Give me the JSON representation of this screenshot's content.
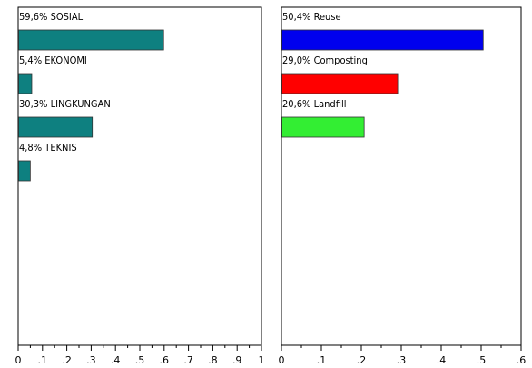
{
  "chart_data": [
    {
      "type": "bar",
      "orientation": "horizontal",
      "categories": [
        "59,6% SOSIAL",
        "5,4% EKONOMI",
        "30,3% LINGKUNGAN",
        "4,8% TEKNIS"
      ],
      "values": [
        0.596,
        0.054,
        0.303,
        0.048
      ],
      "colors": [
        "#0e8080",
        "#0e8080",
        "#0e8080",
        "#0e8080"
      ],
      "xlim": [
        0,
        1
      ],
      "xticks": [
        "0",
        ".1",
        ".2",
        ".3",
        ".4",
        ".5",
        ".6",
        ".7",
        ".8",
        ".9",
        "1"
      ],
      "grid": false
    },
    {
      "type": "bar",
      "orientation": "horizontal",
      "categories": [
        "50,4% Reuse",
        "29,0% Composting",
        "20,6% Landfill"
      ],
      "values": [
        0.504,
        0.29,
        0.206
      ],
      "colors": [
        "#0000ee",
        "#ff0000",
        "#33ee33"
      ],
      "xlim": [
        0,
        0.6
      ],
      "xticks": [
        "0",
        ".1",
        ".2",
        ".3",
        ".4",
        ".5",
        ".6"
      ],
      "grid": false
    }
  ]
}
